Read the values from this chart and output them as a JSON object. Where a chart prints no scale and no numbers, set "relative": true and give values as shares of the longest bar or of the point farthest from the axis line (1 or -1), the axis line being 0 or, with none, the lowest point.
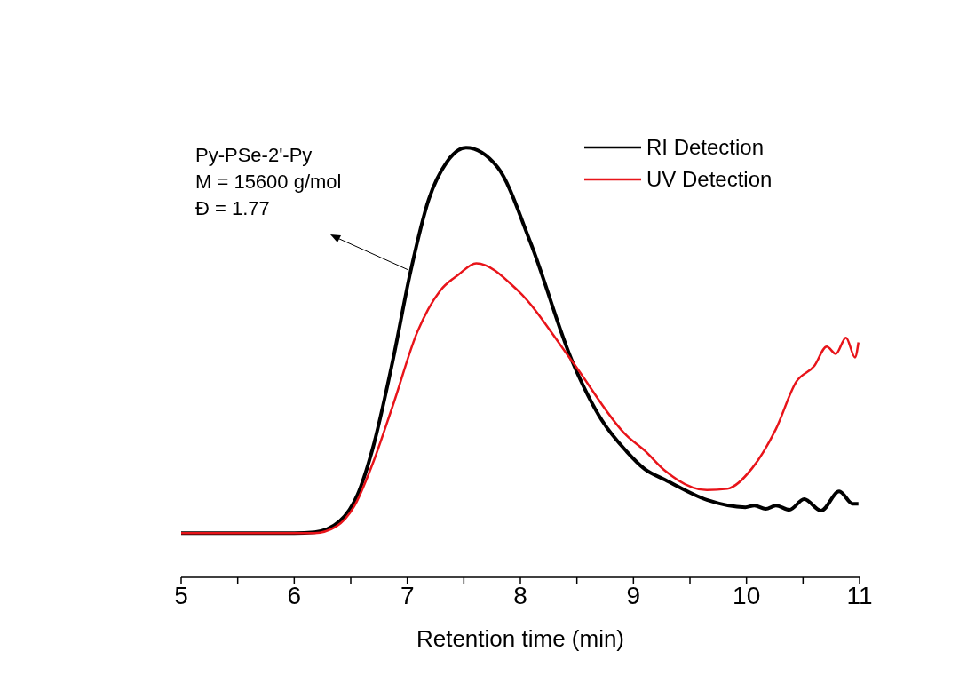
{
  "chart_data": {
    "type": "line",
    "xlabel": "Retention time (min)",
    "relative": true,
    "legend": "top right",
    "grid": false,
    "marker": "none",
    "line_style": "solid",
    "annotations": [
      "Py-PSe-2'-Py",
      "M = 15600 g/mol",
      "Đ = 1.77"
    ],
    "xlim": [
      5,
      11
    ],
    "xticks": [
      5,
      {
        "value": 5.5,
        "label": null
      },
      6,
      {
        "value": 6.5,
        "label": null
      },
      7,
      {
        "value": 7.5,
        "label": null
      },
      8,
      {
        "value": 8.5,
        "label": null
      },
      9,
      {
        "value": 9.5,
        "label": null
      },
      10,
      {
        "value": 10.5,
        "label": null
      },
      11
    ],
    "series": [
      {
        "name": "RI Detection",
        "color": "#000000",
        "x": [
          5,
          6,
          6.18,
          6.4,
          6.56,
          6.69,
          6.87,
          7.03,
          7.19,
          7.35,
          7.52,
          7.8,
          8.09,
          8.46,
          8.72,
          8.94,
          9.1,
          9.28,
          9.65,
          9.99,
          10.07,
          10.17,
          10.26,
          10.38,
          10.51,
          10.66,
          10.82,
          10.94,
          10.99
        ],
        "values": [
          0.103,
          0.103,
          0.105,
          0.13,
          0.192,
          0.296,
          0.502,
          0.713,
          0.88,
          0.967,
          1,
          0.954,
          0.779,
          0.502,
          0.366,
          0.293,
          0.252,
          0.227,
          0.18,
          0.163,
          0.167,
          0.159,
          0.167,
          0.157,
          0.182,
          0.155,
          0.2,
          0.171,
          0.171
        ]
      },
      {
        "name": "UV Detection",
        "color": "#e8141a",
        "x": [
          5,
          6,
          6.18,
          6.37,
          6.53,
          6.69,
          6.87,
          7.09,
          7.29,
          7.45,
          7.61,
          7.98,
          8.46,
          8.94,
          9.1,
          9.28,
          9.65,
          9.83,
          10.05,
          10.26,
          10.44,
          10.6,
          10.71,
          10.79,
          10.88,
          10.96,
          10.99
        ],
        "values": [
          0.103,
          0.103,
          0.103,
          0.118,
          0.165,
          0.262,
          0.398,
          0.572,
          0.667,
          0.704,
          0.731,
          0.667,
          0.502,
          0.33,
          0.295,
          0.248,
          0.203,
          0.206,
          0.254,
          0.345,
          0.455,
          0.492,
          0.537,
          0.52,
          0.558,
          0.512,
          0.547
        ]
      }
    ]
  }
}
